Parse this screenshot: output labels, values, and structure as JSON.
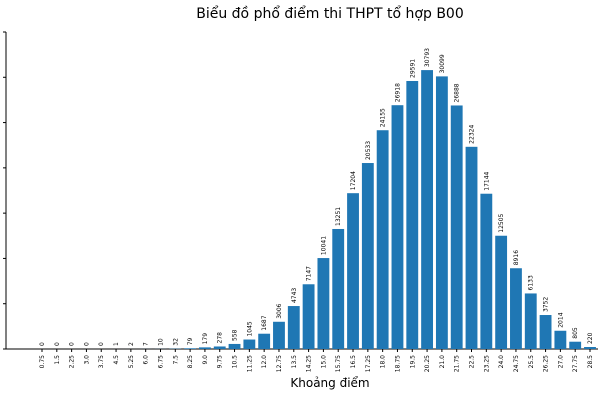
{
  "chart_data": {
    "type": "bar",
    "title": "Biểu đồ phổ điểm thi THPT tổ hợp B00",
    "xlabel": "Khoảng điểm",
    "ylabel": "",
    "categories": [
      "0.75",
      "1.5",
      "2.25",
      "3.0",
      "3.75",
      "4.5",
      "5.25",
      "6.0",
      "6.75",
      "7.5",
      "8.25",
      "9.0",
      "9.75",
      "10.5",
      "11.25",
      "12.0",
      "12.75",
      "13.5",
      "14.25",
      "15.0",
      "15.75",
      "16.5",
      "17.25",
      "18.0",
      "18.75",
      "19.5",
      "20.25",
      "21.0",
      "21.75",
      "22.5",
      "23.25",
      "24.0",
      "24.75",
      "25.5",
      "26.25",
      "27.0",
      "27.75",
      "28.5"
    ],
    "values": [
      0,
      0,
      0,
      0,
      0,
      1,
      2,
      7,
      10,
      32,
      79,
      179,
      278,
      558,
      1045,
      1687,
      3006,
      4743,
      7147,
      10041,
      13251,
      17204,
      20533,
      24155,
      26918,
      29591,
      30793,
      30099,
      26888,
      22324,
      17144,
      12505,
      8916,
      6133,
      3752,
      2014,
      805,
      220
    ],
    "ylim": [
      0,
      35000
    ],
    "data_labels": [
      "0",
      "0",
      "0",
      "0",
      "0",
      "1",
      "2",
      "7",
      "10",
      "32",
      "79",
      "179",
      "278",
      "558",
      "1045",
      "1687",
      "3006",
      "4743",
      "7147",
      "10041",
      "13251",
      "17204",
      "20533",
      "24155",
      "26918",
      "29591",
      "30793",
      "30099",
      "26888",
      "22324",
      "17144",
      "12505",
      "8916",
      "6133",
      "3752",
      "2014",
      "805",
      "220"
    ],
    "grid": false,
    "colors": {
      "bar": "#1f77b4"
    }
  }
}
